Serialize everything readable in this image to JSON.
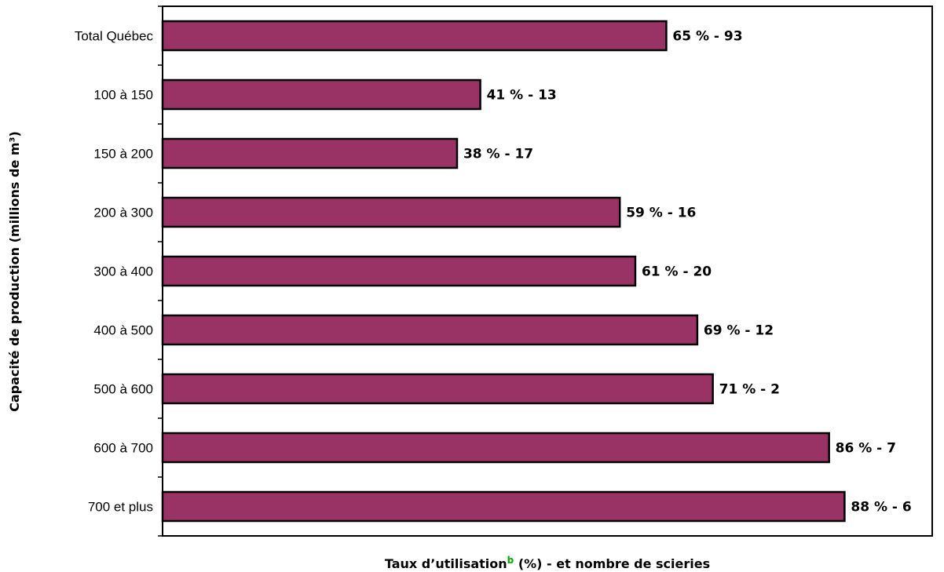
{
  "chart_data": {
    "type": "bar",
    "orientation": "horizontal",
    "categories": [
      "Total Québec",
      "100 à 150",
      "150 à 200",
      "200 à 300",
      "300 à 400",
      "400 à 500",
      "500 à 600",
      "600 à 700",
      "700 et plus"
    ],
    "values": [
      65,
      41,
      38,
      59,
      61,
      69,
      71,
      86,
      88
    ],
    "sawmill_counts": [
      93,
      13,
      17,
      16,
      20,
      12,
      2,
      7,
      6
    ],
    "data_labels": [
      "65 % - 93",
      "41 % - 13",
      "38 % - 17",
      "59 % - 16",
      "61 % - 20",
      "69 % - 12",
      "71 % - 2",
      "86 % - 7",
      "88 % - 6"
    ],
    "xlabel": "Taux d’utilisation",
    "xlabel_superscript": "b",
    "xlabel_suffix": " (%) - et nombre de scieries",
    "ylabel": "Capacité de production (millions de m³)",
    "xlim": [
      0,
      100
    ],
    "grid": false,
    "bar_color": "#993366",
    "superscript_color": "#00aa00"
  }
}
